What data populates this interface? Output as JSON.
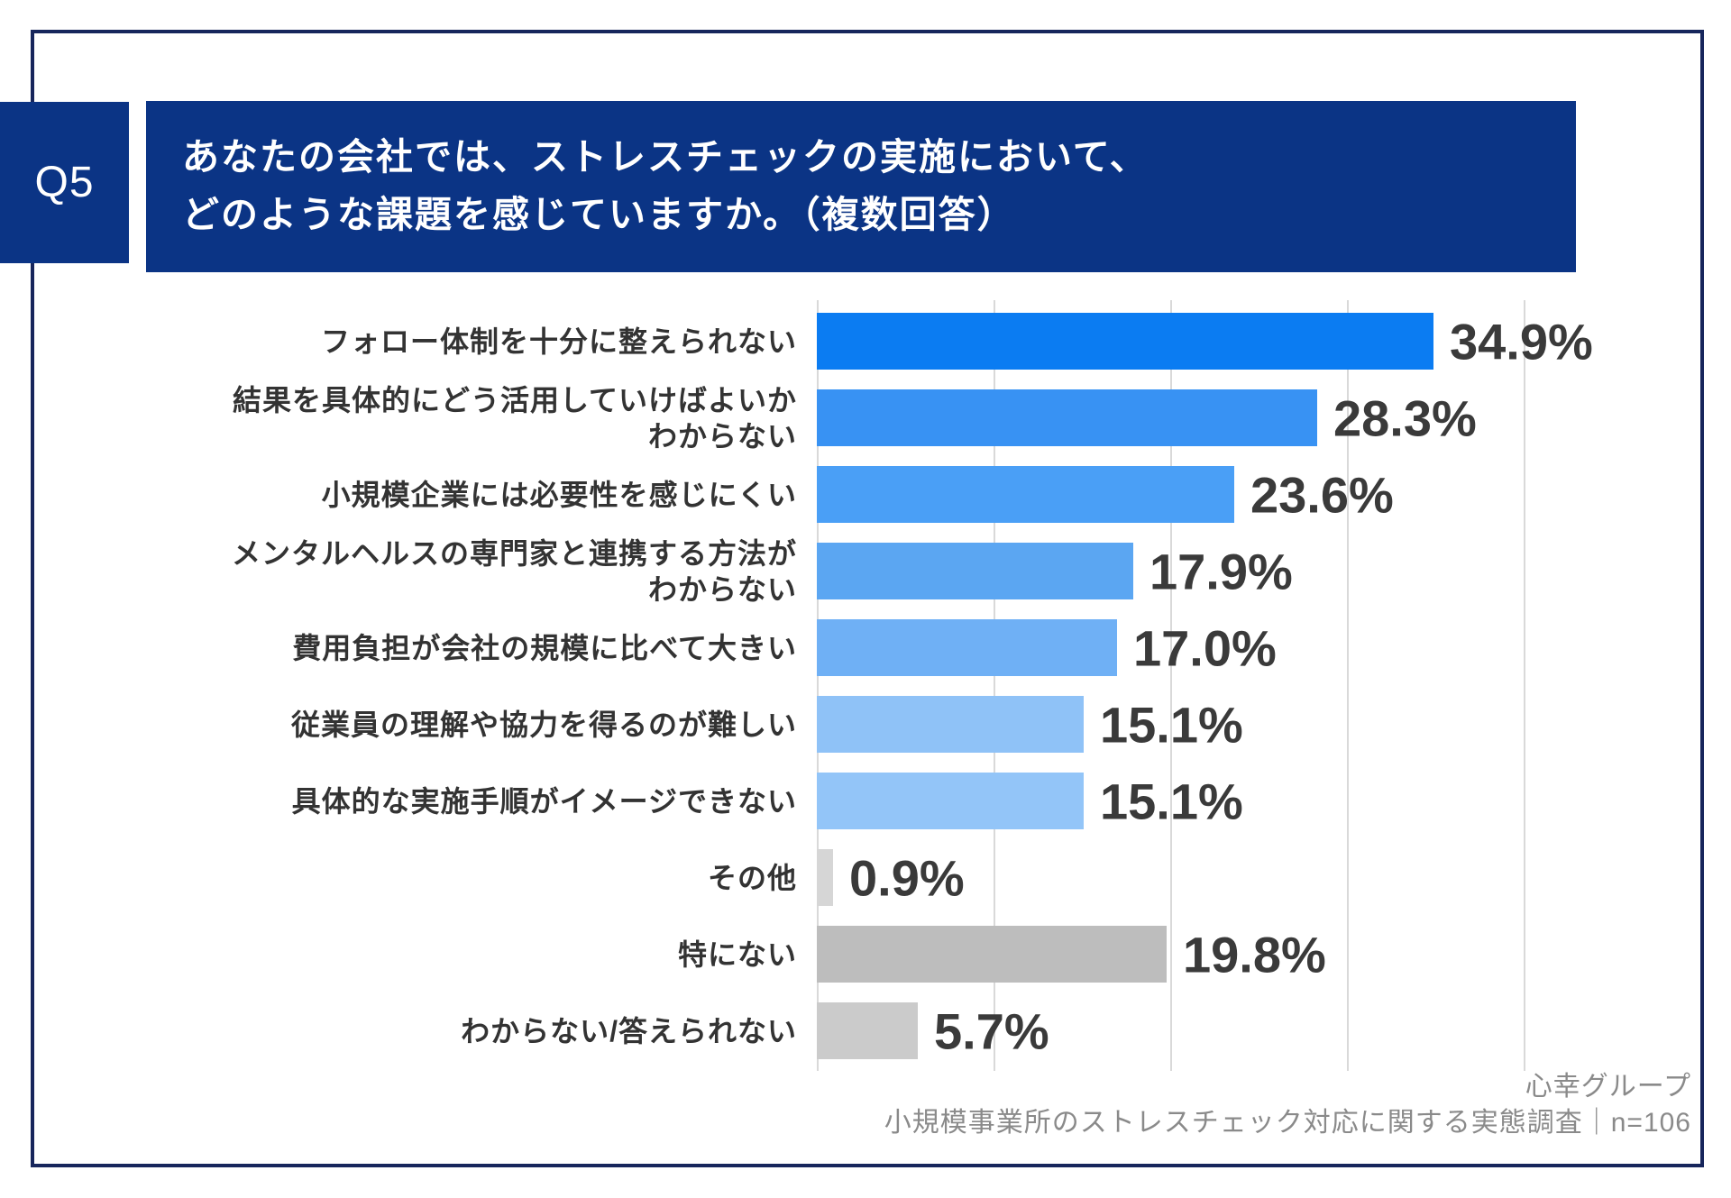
{
  "page": {
    "q_label": "Q5",
    "title_lines": [
      "あなたの会社では、ストレスチェックの実施において、",
      "どのような課題を感じていますか。（複数回答）"
    ],
    "footer": {
      "line1": "心幸グループ",
      "line2": "小規模事業所のストレスチェック対応に関する実態調査｜n=106"
    }
  },
  "colors": {
    "brand-navy": "#0b3485",
    "frame-navy": "#17265c",
    "gridline": "#d9d9d9",
    "value-text": "#3a3a3a",
    "category-text": "#333333",
    "footer-text": "#8a8a8a"
  },
  "chart_data": {
    "type": "bar",
    "orientation": "horizontal",
    "title": "",
    "xlabel": "",
    "ylabel": "",
    "xlim": [
      0,
      40
    ],
    "gridline_step_percent": 10,
    "grid": true,
    "legend": false,
    "categories": [
      [
        "フォロー体制を十分に整えられない"
      ],
      [
        "結果を具体的にどう活用していけばよいか",
        "わからない"
      ],
      [
        "小規模企業には必要性を感じにくい"
      ],
      [
        "メンタルヘルスの専門家と連携する方法が",
        "わからない"
      ],
      [
        "費用負担が会社の規模に比べて大きい"
      ],
      [
        "従業員の理解や協力を得るのが難しい"
      ],
      [
        "具体的な実施手順がイメージできない"
      ],
      [
        "その他"
      ],
      [
        "特にない"
      ],
      [
        "わからない/答えられない"
      ]
    ],
    "values": [
      34.9,
      28.3,
      23.6,
      17.9,
      17.0,
      15.1,
      15.1,
      0.9,
      19.8,
      5.7
    ],
    "value_labels": [
      "34.9%",
      "28.3%",
      "23.6%",
      "17.9%",
      "17.0%",
      "15.1%",
      "15.1%",
      "0.9%",
      "19.8%",
      "5.7%"
    ],
    "bar_colors": [
      "#0b7cf2",
      "#3892f3",
      "#4a9ff6",
      "#5ba6f2",
      "#6fb0f5",
      "#8fc2f7",
      "#93c5f8",
      "#d6d6d6",
      "#bdbdbd",
      "#cbcbcb"
    ]
  }
}
